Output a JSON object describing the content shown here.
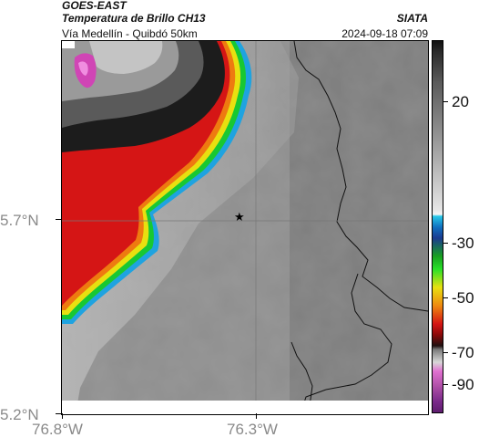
{
  "header": {
    "satellite": "GOES-EAST",
    "product": "Temperatura de Brillo CH13",
    "subtitle": "Vía Medellín - Quibdó 50km",
    "organization": "SIATA",
    "timestamp": "2024-09-18 07:09"
  },
  "map": {
    "y_ticks": [
      {
        "label": "5.7°N",
        "value": 5.7
      },
      {
        "label": "5.2°N",
        "value": 5.2
      }
    ],
    "x_ticks": [
      {
        "label": "76.8°W",
        "value": -76.8
      },
      {
        "label": "76.3°W",
        "value": -76.3
      }
    ],
    "marker": {
      "symbol": "★",
      "name": "site-marker"
    }
  },
  "colorbar": {
    "ticks": [
      {
        "label": "20",
        "value": 20
      },
      {
        "label": "-30",
        "value": -30
      },
      {
        "label": "-50",
        "value": -50
      },
      {
        "label": "-70",
        "value": -70
      },
      {
        "label": "-90",
        "value": -90
      }
    ]
  },
  "colors": {
    "land": "#8d8d8d",
    "cloud_red": "#d01010",
    "cloud_dark": "#1a1a1a",
    "magenta": "#d045b5"
  }
}
